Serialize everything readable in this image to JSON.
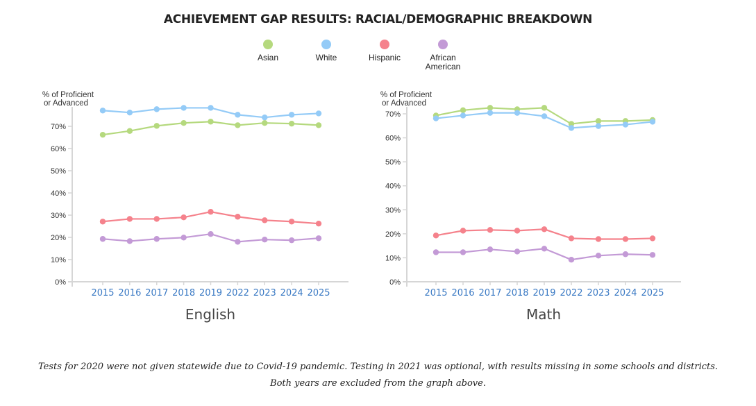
{
  "title": "ACHIEVEMENT GAP RESULTS: RACIAL/DEMOGRAPHIC BREAKDOWN",
  "legend": [
    {
      "label": "Asian",
      "color": "#b5d97e"
    },
    {
      "label": "White",
      "color": "#94cbf7"
    },
    {
      "label": "Hispanic",
      "color": "#f5828c"
    },
    {
      "label": "African American",
      "color": "#c39ad6"
    }
  ],
  "note": "Tests for 2020 were not given statewide due to Covid-19 pandemic. Testing in 2021 was optional, with results missing in some schools and districts. Both years are excluded from the graph above.",
  "chart_data": [
    {
      "type": "line",
      "title": "English",
      "ylabel": "% of Proficient or Advanced",
      "xlabel": "",
      "categories": [
        "2015",
        "2016",
        "2017",
        "2018",
        "2019",
        "2022",
        "2023",
        "2024",
        "2025"
      ],
      "ylim": [
        0,
        70
      ],
      "yticks": [
        "0%",
        "10%",
        "20%",
        "30%",
        "40%",
        "50%",
        "60%",
        "70%"
      ],
      "grid": false,
      "legend_position": "top-center",
      "series": [
        {
          "name": "Asian",
          "values": [
            66.2,
            67.9,
            70.2,
            71.5,
            72.1,
            70.5,
            71.5,
            71.2,
            70.5
          ]
        },
        {
          "name": "White",
          "values": [
            77.1,
            76.2,
            77.7,
            78.3,
            78.3,
            75.2,
            74.0,
            75.2,
            75.8
          ]
        },
        {
          "name": "Hispanic",
          "values": [
            27.1,
            28.3,
            28.3,
            29.0,
            31.5,
            29.3,
            27.7,
            27.1,
            26.2
          ]
        },
        {
          "name": "African American",
          "values": [
            19.3,
            18.3,
            19.3,
            19.9,
            21.5,
            18.0,
            19.0,
            18.7,
            19.6
          ]
        }
      ]
    },
    {
      "type": "line",
      "title": "Math",
      "ylabel": "% of Proficient or Advanced",
      "xlabel": "",
      "categories": [
        "2015",
        "2016",
        "2017",
        "2018",
        "2019",
        "2022",
        "2023",
        "2024",
        "2025"
      ],
      "ylim": [
        0,
        70
      ],
      "yticks": [
        "0%",
        "10%",
        "20%",
        "30%",
        "40%",
        "50%",
        "60%",
        "70%"
      ],
      "grid": false,
      "legend_position": "top-center",
      "series": [
        {
          "name": "Asian",
          "values": [
            69.3,
            71.5,
            72.5,
            71.9,
            72.5,
            65.8,
            67.0,
            67.0,
            67.4
          ]
        },
        {
          "name": "White",
          "values": [
            68.1,
            69.3,
            70.4,
            70.4,
            69.0,
            64.1,
            64.9,
            65.5,
            66.7
          ]
        },
        {
          "name": "Hispanic",
          "values": [
            19.3,
            21.3,
            21.6,
            21.3,
            21.9,
            18.1,
            17.8,
            17.8,
            18.1
          ]
        },
        {
          "name": "African American",
          "values": [
            12.3,
            12.3,
            13.5,
            12.6,
            13.8,
            9.2,
            10.9,
            11.5,
            11.2
          ]
        }
      ]
    }
  ]
}
